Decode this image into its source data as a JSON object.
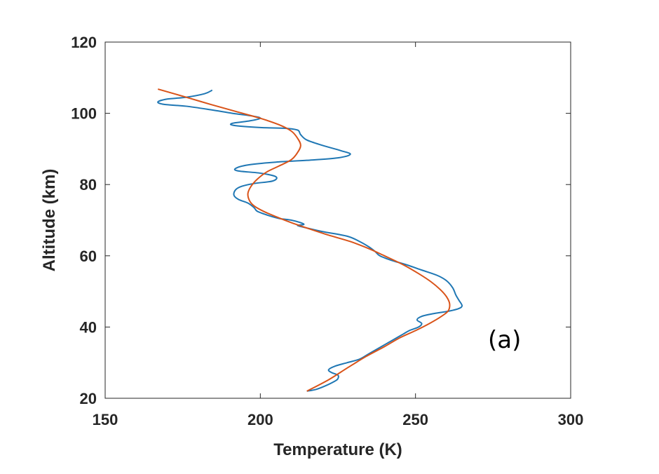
{
  "chart_data": {
    "type": "line",
    "title": "",
    "xlabel": "Temperature (K)",
    "ylabel": "Altitude (km)",
    "xlim": [
      150,
      300
    ],
    "ylim": [
      20,
      120
    ],
    "xticks": [
      "150",
      "200",
      "250",
      "300"
    ],
    "yticks": [
      "20",
      "40",
      "60",
      "80",
      "100",
      "120"
    ],
    "grid": false,
    "legend": "none",
    "annotation": "(a)",
    "series": [
      {
        "color": "#1f77b4",
        "points": [
          [
            184.5,
            106.5
          ],
          [
            182,
            105.5
          ],
          [
            176,
            104.5
          ],
          [
            170,
            104
          ],
          [
            167,
            103.2
          ],
          [
            169,
            102.5
          ],
          [
            176,
            102
          ],
          [
            184,
            101
          ],
          [
            191,
            100
          ],
          [
            197,
            99.3
          ],
          [
            200,
            98.6
          ],
          [
            196,
            97.8
          ],
          [
            191,
            97.2
          ],
          [
            191.5,
            96.6
          ],
          [
            200,
            96
          ],
          [
            208,
            95.8
          ],
          [
            212,
            95.3
          ],
          [
            213,
            94
          ],
          [
            215,
            92.5
          ],
          [
            220,
            91
          ],
          [
            226,
            89.5
          ],
          [
            229,
            88.5
          ],
          [
            225,
            87.5
          ],
          [
            215,
            86.8
          ],
          [
            205,
            86.3
          ],
          [
            196,
            85.5
          ],
          [
            192,
            84.5
          ],
          [
            193,
            83.8
          ],
          [
            200,
            83.2
          ],
          [
            205,
            82.2
          ],
          [
            204,
            81
          ],
          [
            198,
            80.3
          ],
          [
            194,
            79.5
          ],
          [
            192,
            78.5
          ],
          [
            191.5,
            77
          ],
          [
            193,
            75.8
          ],
          [
            196,
            74.8
          ],
          [
            198,
            73.5
          ],
          [
            199,
            72.5
          ],
          [
            202,
            71.5
          ],
          [
            206,
            70.5
          ],
          [
            210,
            70
          ],
          [
            213,
            69.3
          ],
          [
            214,
            68.8
          ],
          [
            212,
            68.5
          ],
          [
            215,
            67.8
          ],
          [
            220,
            66.8
          ],
          [
            228,
            65.5
          ],
          [
            232,
            64
          ],
          [
            235,
            62.5
          ],
          [
            237,
            61.2
          ],
          [
            238.5,
            60
          ],
          [
            242,
            58.8
          ],
          [
            247,
            57.5
          ],
          [
            252,
            56
          ],
          [
            257,
            54.5
          ],
          [
            260,
            53
          ],
          [
            262,
            51
          ],
          [
            263,
            49
          ],
          [
            264,
            47.5
          ],
          [
            265,
            46
          ],
          [
            264,
            45.2
          ],
          [
            261,
            44.5
          ],
          [
            256,
            43.8
          ],
          [
            252,
            43
          ],
          [
            250.5,
            42
          ],
          [
            252,
            41
          ],
          [
            251,
            40
          ],
          [
            248,
            39
          ],
          [
            246,
            38
          ],
          [
            244,
            37
          ],
          [
            241,
            35.5
          ],
          [
            238,
            34
          ],
          [
            235,
            32.5
          ],
          [
            232,
            31
          ],
          [
            228,
            30
          ],
          [
            224,
            29
          ],
          [
            222,
            28
          ],
          [
            223,
            27.2
          ],
          [
            225,
            26.5
          ],
          [
            225,
            25.5
          ],
          [
            224,
            24.8
          ],
          [
            221,
            23.5
          ],
          [
            218,
            22.5
          ],
          [
            215,
            22
          ]
        ]
      },
      {
        "color": "#d95319",
        "points": [
          [
            167,
            106.8
          ],
          [
            175,
            104.8
          ],
          [
            184,
            102.5
          ],
          [
            193,
            100.3
          ],
          [
            200,
            98.6
          ],
          [
            206,
            96.8
          ],
          [
            210,
            95
          ],
          [
            212,
            93
          ],
          [
            213,
            91
          ],
          [
            212,
            89
          ],
          [
            210,
            87
          ],
          [
            206,
            85.2
          ],
          [
            202,
            83.5
          ],
          [
            199,
            81.5
          ],
          [
            197,
            79.5
          ],
          [
            196,
            77.5
          ],
          [
            196.5,
            75.5
          ],
          [
            198,
            74
          ],
          [
            201,
            72.5
          ],
          [
            205,
            71
          ],
          [
            210,
            69.3
          ],
          [
            216,
            67.5
          ],
          [
            222,
            65.8
          ],
          [
            229,
            64
          ],
          [
            235,
            62
          ],
          [
            240,
            60
          ],
          [
            246,
            57.5
          ],
          [
            251,
            55
          ],
          [
            255,
            52.7
          ],
          [
            258,
            50.5
          ],
          [
            260,
            48.5
          ],
          [
            261,
            46.5
          ],
          [
            260.5,
            44.5
          ],
          [
            258,
            42.8
          ],
          [
            254.5,
            41
          ],
          [
            250,
            39
          ],
          [
            245,
            37
          ],
          [
            240,
            34.5
          ],
          [
            234,
            31.7
          ],
          [
            228,
            28.5
          ],
          [
            222,
            25.2
          ],
          [
            215,
            22
          ]
        ]
      }
    ]
  }
}
